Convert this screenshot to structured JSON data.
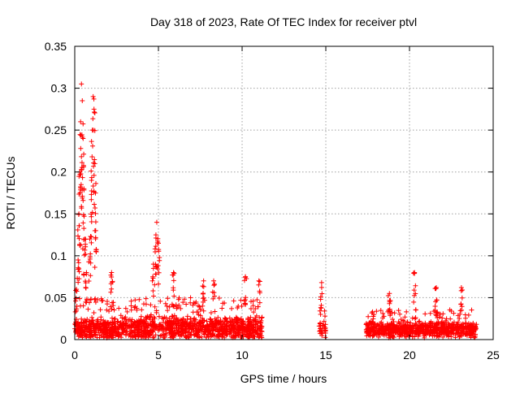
{
  "chart_data": {
    "type": "scatter",
    "title": "Day 318 of 2023, Rate Of TEC Index for receiver ptvl",
    "xlabel": "GPS time / hours",
    "ylabel": "ROTI / TECUs",
    "xlim": [
      0,
      25
    ],
    "ylim": [
      0,
      0.35
    ],
    "xticks": [
      0,
      5,
      10,
      15,
      20,
      25
    ],
    "yticks": [
      0,
      0.05,
      0.1,
      0.15,
      0.2,
      0.25,
      0.3,
      0.35
    ],
    "xtick_labels": [
      "0",
      "5",
      "10",
      "15",
      "20",
      "25"
    ],
    "ytick_labels": [
      "0",
      "0.05",
      "0.1",
      "0.15",
      "0.2",
      "0.25",
      "0.3",
      "0.35"
    ],
    "grid": true,
    "marker": "+",
    "color": "#ff0000",
    "series": [
      {
        "name": "ROTI",
        "segments": [
          {
            "x_range": [
              0.0,
              11.2
            ],
            "base": 0.014,
            "spread": 0.012,
            "density": 110
          },
          {
            "x_range": [
              14.6,
              15.0
            ],
            "base": 0.012,
            "spread": 0.008,
            "density": 60
          },
          {
            "x_range": [
              17.4,
              24.0
            ],
            "base": 0.012,
            "spread": 0.008,
            "density": 110
          }
        ],
        "peaks": [
          {
            "x": 0.1,
            "y": 0.06
          },
          {
            "x": 0.2,
            "y": 0.095
          },
          {
            "x": 0.25,
            "y": 0.15
          },
          {
            "x": 0.3,
            "y": 0.2
          },
          {
            "x": 0.35,
            "y": 0.26
          },
          {
            "x": 0.4,
            "y": 0.305
          },
          {
            "x": 0.45,
            "y": 0.285
          },
          {
            "x": 0.5,
            "y": 0.24
          },
          {
            "x": 0.55,
            "y": 0.18
          },
          {
            "x": 0.6,
            "y": 0.12
          },
          {
            "x": 0.7,
            "y": 0.08
          },
          {
            "x": 0.9,
            "y": 0.12
          },
          {
            "x": 1.0,
            "y": 0.19
          },
          {
            "x": 1.05,
            "y": 0.25
          },
          {
            "x": 1.1,
            "y": 0.29
          },
          {
            "x": 1.15,
            "y": 0.275
          },
          {
            "x": 1.2,
            "y": 0.21
          },
          {
            "x": 1.25,
            "y": 0.13
          },
          {
            "x": 2.2,
            "y": 0.08
          },
          {
            "x": 4.7,
            "y": 0.09
          },
          {
            "x": 4.85,
            "y": 0.125
          },
          {
            "x": 4.9,
            "y": 0.14
          },
          {
            "x": 5.0,
            "y": 0.115
          },
          {
            "x": 5.9,
            "y": 0.08
          },
          {
            "x": 7.7,
            "y": 0.07
          },
          {
            "x": 8.3,
            "y": 0.07
          },
          {
            "x": 10.2,
            "y": 0.075
          },
          {
            "x": 11.0,
            "y": 0.07
          },
          {
            "x": 14.75,
            "y": 0.068
          },
          {
            "x": 18.8,
            "y": 0.055
          },
          {
            "x": 20.3,
            "y": 0.08
          },
          {
            "x": 21.6,
            "y": 0.062
          },
          {
            "x": 23.1,
            "y": 0.062
          }
        ]
      }
    ]
  }
}
